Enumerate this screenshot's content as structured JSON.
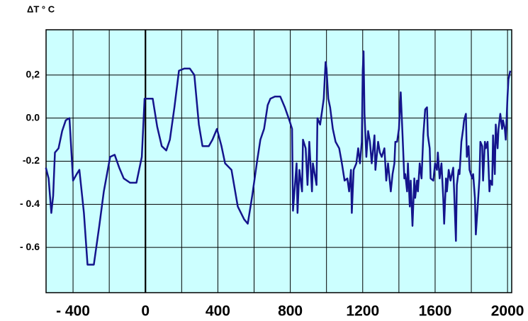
{
  "chart_data": {
    "type": "line",
    "y_axis_label": "ΔT ° C",
    "color": "#14148c",
    "xlim": [
      -549,
      2023
    ],
    "ylim": [
      -0.81,
      0.41
    ],
    "xticks": [
      {
        "value": -400,
        "label": "- 400"
      },
      0,
      400,
      800,
      1200,
      1600,
      2000
    ],
    "x_gridlines": [
      -400,
      -200,
      0,
      200,
      400,
      600,
      800,
      1000,
      1200,
      1400,
      1600,
      1800,
      2000
    ],
    "yticks": [
      {
        "value": 0.2,
        "label": "0,2"
      },
      {
        "value": 0,
        "label": "0.0"
      },
      {
        "value": -0.2,
        "label": "-0.2"
      },
      {
        "value": -0.4,
        "label": "- 0.4"
      },
      {
        "value": -0.6,
        "label": "- 0.6"
      }
    ],
    "grid": true,
    "x": [
      -550,
      -535,
      -520,
      -510,
      -500,
      -480,
      -460,
      -440,
      -420,
      -400,
      -380,
      -365,
      -340,
      -320,
      -285,
      -255,
      -230,
      -195,
      -170,
      -145,
      -120,
      -85,
      -50,
      -20,
      -5,
      20,
      40,
      65,
      90,
      115,
      135,
      160,
      185,
      215,
      245,
      270,
      295,
      315,
      350,
      370,
      395,
      420,
      440,
      475,
      510,
      545,
      565,
      590,
      615,
      635,
      655,
      675,
      690,
      715,
      745,
      770,
      795,
      810,
      815,
      835,
      840,
      850,
      865,
      870,
      885,
      895,
      905,
      920,
      925,
      945,
      950,
      965,
      975,
      985,
      995,
      1000,
      1010,
      1020,
      1035,
      1050,
      1070,
      1085,
      1100,
      1115,
      1125,
      1135,
      1140,
      1150,
      1165,
      1175,
      1185,
      1195,
      1200,
      1205,
      1210,
      1220,
      1230,
      1240,
      1250,
      1265,
      1270,
      1285,
      1295,
      1305,
      1320,
      1330,
      1340,
      1355,
      1365,
      1375,
      1380,
      1390,
      1400,
      1410,
      1420,
      1430,
      1435,
      1445,
      1450,
      1460,
      1465,
      1475,
      1485,
      1490,
      1500,
      1505,
      1515,
      1525,
      1535,
      1545,
      1555,
      1560,
      1570,
      1575,
      1590,
      1600,
      1610,
      1615,
      1625,
      1635,
      1645,
      1650,
      1660,
      1665,
      1675,
      1685,
      1700,
      1705,
      1715,
      1720,
      1730,
      1735,
      1745,
      1755,
      1760,
      1770,
      1775,
      1785,
      1790,
      1805,
      1810,
      1820,
      1825,
      1835,
      1845,
      1850,
      1860,
      1865,
      1875,
      1880,
      1890,
      1900,
      1905,
      1915,
      1920,
      1930,
      1935,
      1945,
      1950,
      1960,
      1970,
      1975,
      1985,
      1990,
      2000,
      2005,
      2015
    ],
    "values": [
      -0.23,
      -0.28,
      -0.44,
      -0.36,
      -0.16,
      -0.14,
      -0.06,
      -0.01,
      0.0,
      -0.29,
      -0.26,
      -0.24,
      -0.44,
      -0.68,
      -0.68,
      -0.5,
      -0.34,
      -0.18,
      -0.17,
      -0.23,
      -0.28,
      -0.3,
      -0.3,
      -0.18,
      0.09,
      0.09,
      0.09,
      -0.04,
      -0.13,
      -0.15,
      -0.1,
      0.05,
      0.22,
      0.23,
      0.23,
      0.2,
      -0.03,
      -0.13,
      -0.13,
      -0.1,
      -0.05,
      -0.13,
      -0.21,
      -0.24,
      -0.41,
      -0.47,
      -0.49,
      -0.36,
      -0.21,
      -0.1,
      -0.05,
      0.06,
      0.09,
      0.1,
      0.1,
      0.05,
      -0.01,
      -0.05,
      -0.43,
      -0.21,
      -0.44,
      -0.24,
      -0.34,
      -0.1,
      -0.14,
      -0.31,
      -0.11,
      -0.34,
      -0.21,
      -0.31,
      0.0,
      -0.03,
      0.03,
      0.09,
      0.26,
      0.23,
      0.09,
      0.05,
      -0.05,
      -0.11,
      -0.14,
      -0.21,
      -0.29,
      -0.28,
      -0.34,
      -0.24,
      -0.44,
      -0.24,
      -0.21,
      -0.14,
      -0.21,
      -0.11,
      0.22,
      0.31,
      0.02,
      -0.18,
      -0.06,
      -0.11,
      -0.21,
      -0.08,
      -0.24,
      -0.11,
      -0.16,
      -0.18,
      -0.14,
      -0.29,
      -0.21,
      -0.34,
      -0.26,
      -0.21,
      -0.11,
      -0.11,
      -0.05,
      0.12,
      -0.08,
      -0.28,
      -0.26,
      -0.34,
      -0.21,
      -0.41,
      -0.29,
      -0.5,
      -0.28,
      -0.37,
      -0.29,
      -0.34,
      -0.21,
      -0.28,
      -0.08,
      0.04,
      0.05,
      -0.08,
      -0.14,
      -0.28,
      -0.29,
      -0.21,
      -0.24,
      -0.16,
      -0.28,
      -0.21,
      -0.37,
      -0.49,
      -0.28,
      -0.34,
      -0.24,
      -0.29,
      -0.23,
      -0.34,
      -0.57,
      -0.31,
      -0.24,
      -0.26,
      -0.11,
      -0.05,
      -0.01,
      0.02,
      -0.18,
      -0.13,
      -0.24,
      -0.28,
      -0.26,
      -0.37,
      -0.54,
      -0.41,
      -0.28,
      -0.11,
      -0.13,
      -0.29,
      -0.11,
      -0.14,
      -0.11,
      -0.34,
      -0.29,
      -0.31,
      -0.08,
      -0.26,
      -0.03,
      -0.14,
      -0.05,
      0.02,
      -0.05,
      -0.01,
      -0.05,
      -0.1,
      0.1,
      0.18,
      0.22
    ]
  }
}
